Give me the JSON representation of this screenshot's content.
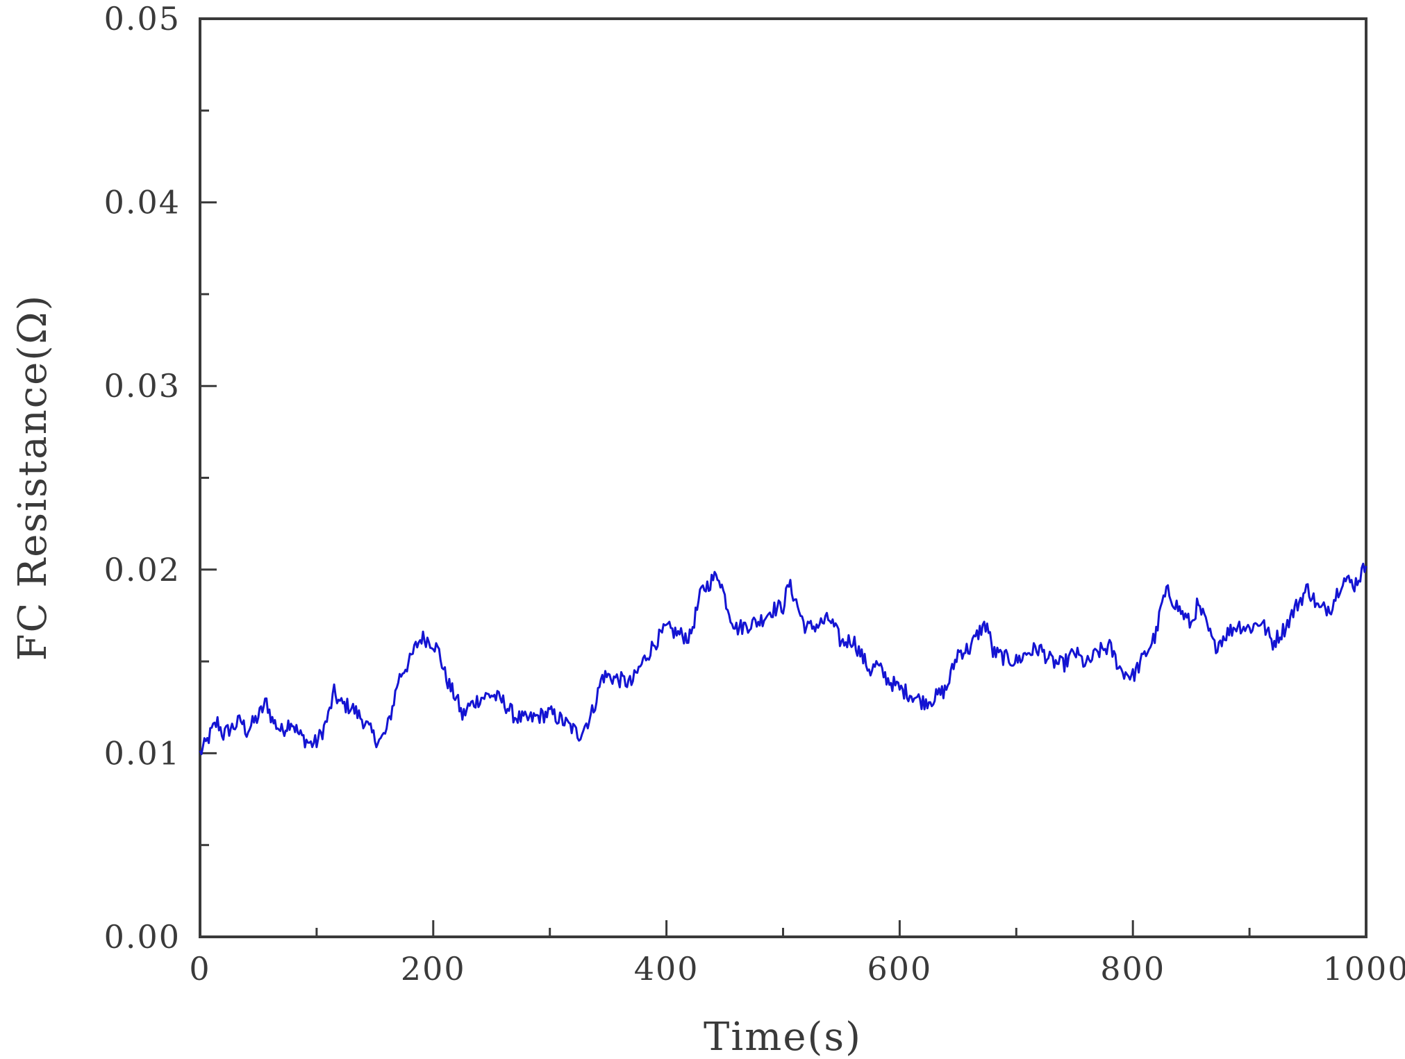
{
  "chart_data": {
    "type": "line",
    "title": "",
    "xlabel": "Time(s)",
    "ylabel": "FC Resistance(Ω)",
    "xlim": [
      0,
      1000
    ],
    "ylim": [
      0,
      0.05
    ],
    "grid": false,
    "x_ticks": [
      {
        "value": 0,
        "label": "0"
      },
      {
        "value": 200,
        "label": "200"
      },
      {
        "value": 400,
        "label": "400"
      },
      {
        "value": 600,
        "label": "600"
      },
      {
        "value": 800,
        "label": "800"
      },
      {
        "value": 1000,
        "label": "1000"
      }
    ],
    "y_ticks": [
      {
        "value": 0,
        "label": "0.00"
      },
      {
        "value": 0.01,
        "label": "0.01"
      },
      {
        "value": 0.02,
        "label": "0.02"
      },
      {
        "value": 0.03,
        "label": "0.03"
      },
      {
        "value": 0.04,
        "label": "0.04"
      },
      {
        "value": 0.05,
        "label": "0.05"
      }
    ],
    "x_minor_step": 100,
    "y_minor_step": 0.005,
    "series": [
      {
        "color": "#1414d2",
        "x": [
          0,
          5,
          10,
          15,
          20,
          25,
          30,
          35,
          40,
          50,
          57,
          62,
          70,
          78,
          85,
          95,
          100,
          105,
          110,
          115,
          120,
          130,
          140,
          150,
          155,
          160,
          165,
          170,
          175,
          180,
          185,
          190,
          195,
          200,
          205,
          210,
          215,
          220,
          225,
          230,
          240,
          250,
          260,
          270,
          280,
          290,
          300,
          310,
          320,
          325,
          330,
          335,
          340,
          345,
          350,
          360,
          370,
          380,
          390,
          400,
          410,
          420,
          430,
          440,
          445,
          450,
          455,
          460,
          470,
          480,
          490,
          500,
          505,
          510,
          515,
          520,
          530,
          540,
          545,
          550,
          560,
          570,
          575,
          580,
          590,
          600,
          610,
          620,
          630,
          640,
          645,
          650,
          660,
          670,
          675,
          680,
          690,
          700,
          710,
          720,
          730,
          740,
          750,
          760,
          770,
          780,
          790,
          800,
          810,
          820,
          825,
          830,
          840,
          850,
          855,
          860,
          870,
          880,
          890,
          900,
          910,
          920,
          930,
          940,
          950,
          960,
          970,
          980,
          990,
          1000
        ],
        "y": [
          0.01,
          0.0105,
          0.0112,
          0.0117,
          0.011,
          0.0113,
          0.0115,
          0.0118,
          0.0112,
          0.012,
          0.0128,
          0.0118,
          0.0112,
          0.0118,
          0.011,
          0.0105,
          0.0106,
          0.0112,
          0.012,
          0.0133,
          0.0127,
          0.0125,
          0.0118,
          0.0108,
          0.0107,
          0.0112,
          0.0125,
          0.014,
          0.0146,
          0.015,
          0.0158,
          0.0163,
          0.0162,
          0.016,
          0.0155,
          0.0143,
          0.0135,
          0.013,
          0.012,
          0.0125,
          0.013,
          0.0132,
          0.0128,
          0.012,
          0.0118,
          0.012,
          0.0122,
          0.0118,
          0.0113,
          0.011,
          0.0115,
          0.012,
          0.013,
          0.0142,
          0.0142,
          0.014,
          0.0138,
          0.015,
          0.016,
          0.0168,
          0.0165,
          0.0163,
          0.0188,
          0.0195,
          0.0197,
          0.0185,
          0.0175,
          0.0168,
          0.017,
          0.0172,
          0.0178,
          0.018,
          0.0192,
          0.0185,
          0.0175,
          0.0168,
          0.017,
          0.0173,
          0.0167,
          0.016,
          0.0162,
          0.015,
          0.0145,
          0.0148,
          0.014,
          0.0135,
          0.0132,
          0.0128,
          0.013,
          0.0135,
          0.0145,
          0.0155,
          0.0157,
          0.0168,
          0.017,
          0.0155,
          0.0152,
          0.015,
          0.0155,
          0.0157,
          0.015,
          0.0148,
          0.0155,
          0.0148,
          0.0155,
          0.0158,
          0.0145,
          0.0142,
          0.0153,
          0.0165,
          0.0182,
          0.0188,
          0.0178,
          0.017,
          0.018,
          0.0175,
          0.0158,
          0.0165,
          0.017,
          0.0168,
          0.0172,
          0.016,
          0.0168,
          0.018,
          0.019,
          0.0178,
          0.018,
          0.0195,
          0.0192,
          0.0202
        ]
      }
    ]
  }
}
